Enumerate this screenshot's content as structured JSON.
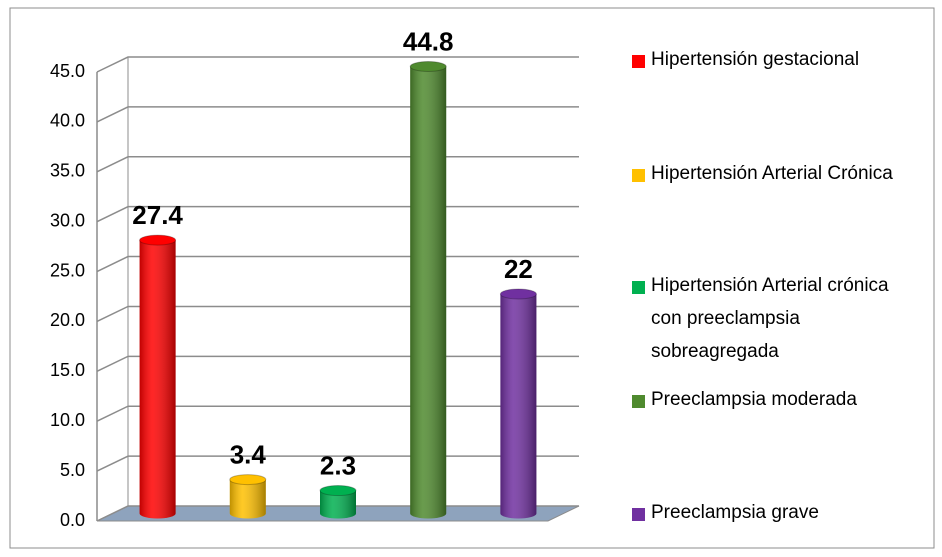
{
  "chart_data": {
    "type": "bar",
    "categories": [
      "Hipertensión gestacional",
      "Hipertensión Arterial Crónica",
      "Hipertensión Arterial crónica con preeclampsia sobreagregada",
      "Preeclampsia moderada",
      "Preeclampsia grave"
    ],
    "values": [
      27.4,
      3.4,
      2.3,
      44.8,
      22
    ],
    "colors": [
      "#ff0000",
      "#ffc000",
      "#00b050",
      "#4f8a2e",
      "#7030a0"
    ],
    "ylim": [
      0,
      45
    ],
    "yticks": [
      {
        "value": 0,
        "label": "0.0"
      },
      {
        "value": 5,
        "label": "5.0"
      },
      {
        "value": 10,
        "label": "10.0"
      },
      {
        "value": 15,
        "label": "15.0"
      },
      {
        "value": 20,
        "label": "20.0"
      },
      {
        "value": 25,
        "label": "25.0"
      },
      {
        "value": 30,
        "label": "30.0"
      },
      {
        "value": 35,
        "label": "35.0"
      },
      {
        "value": 40,
        "label": "40.0"
      },
      {
        "value": 45,
        "label": "45.0"
      }
    ],
    "grid": true
  }
}
